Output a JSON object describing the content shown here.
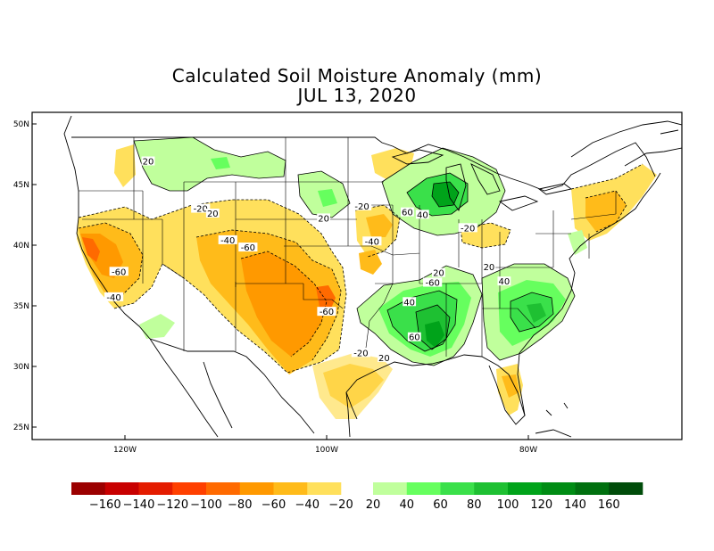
{
  "title": "Calculated Soil Moisture Anomaly (mm)",
  "date": "JUL 13, 2020",
  "axes": {
    "lat_labels": [
      {
        "label": "50N",
        "lat": 50
      },
      {
        "label": "45N",
        "lat": 45
      },
      {
        "label": "40N",
        "lat": 40
      },
      {
        "label": "35N",
        "lat": 35
      },
      {
        "label": "30N",
        "lat": 30
      },
      {
        "label": "25N",
        "lat": 25
      }
    ],
    "lon_labels": [
      {
        "label": "120W",
        "lon": -120
      },
      {
        "label": "100W",
        "lon": -100
      },
      {
        "label": "80W",
        "lon": -80
      }
    ]
  },
  "contour_labels": [
    {
      "text": "20",
      "lon": -117.7,
      "lat": 46.8
    },
    {
      "text": "-20",
      "lon": -112.5,
      "lat": 42.9
    },
    {
      "text": "20",
      "lon": -111.3,
      "lat": 42.5
    },
    {
      "text": "-40",
      "lon": -109.8,
      "lat": 40.3
    },
    {
      "text": "-60",
      "lon": -107.8,
      "lat": 39.7
    },
    {
      "text": "-60",
      "lon": -120.6,
      "lat": 37.7
    },
    {
      "text": "-40",
      "lon": -121.1,
      "lat": 35.6
    },
    {
      "text": "20",
      "lon": -100.3,
      "lat": 42.1
    },
    {
      "text": "-20",
      "lon": -96.5,
      "lat": 43.1
    },
    {
      "text": "-40",
      "lon": -95.5,
      "lat": 40.2
    },
    {
      "text": "-60",
      "lon": -100.0,
      "lat": 34.4
    },
    {
      "text": "60",
      "lon": -92.0,
      "lat": 42.6
    },
    {
      "text": "40",
      "lon": -90.5,
      "lat": 42.4
    },
    {
      "text": "-20",
      "lon": -86.0,
      "lat": 41.3
    },
    {
      "text": "20",
      "lon": -83.9,
      "lat": 38.1
    },
    {
      "text": "20",
      "lon": -88.9,
      "lat": 37.6
    },
    {
      "text": "-60",
      "lon": -89.5,
      "lat": 36.8
    },
    {
      "text": "40",
      "lon": -91.8,
      "lat": 35.2
    },
    {
      "text": "40",
      "lon": -82.4,
      "lat": 36.9
    },
    {
      "text": "60",
      "lon": -91.3,
      "lat": 32.3
    },
    {
      "text": "-20",
      "lon": -96.6,
      "lat": 31.0
    },
    {
      "text": "20",
      "lon": -94.3,
      "lat": 30.6
    }
  ],
  "colorbar": {
    "labels": [
      "-160",
      "-140",
      "-120",
      "-100",
      "-80",
      "-60",
      "-40",
      "-20",
      "20",
      "40",
      "60",
      "80",
      "100",
      "120",
      "140",
      "160"
    ],
    "dry_colors": [
      "#9b0000",
      "#c80000",
      "#e41c00",
      "#ff4000",
      "#ff6a00",
      "#ff9900",
      "#ffbb1a",
      "#ffe05c"
    ],
    "wet_colors": [
      "#c0ff9c",
      "#66ff5e",
      "#3ae04a",
      "#1ec032",
      "#00a31a",
      "#008c14",
      "#00700f",
      "#004c0a"
    ]
  }
}
